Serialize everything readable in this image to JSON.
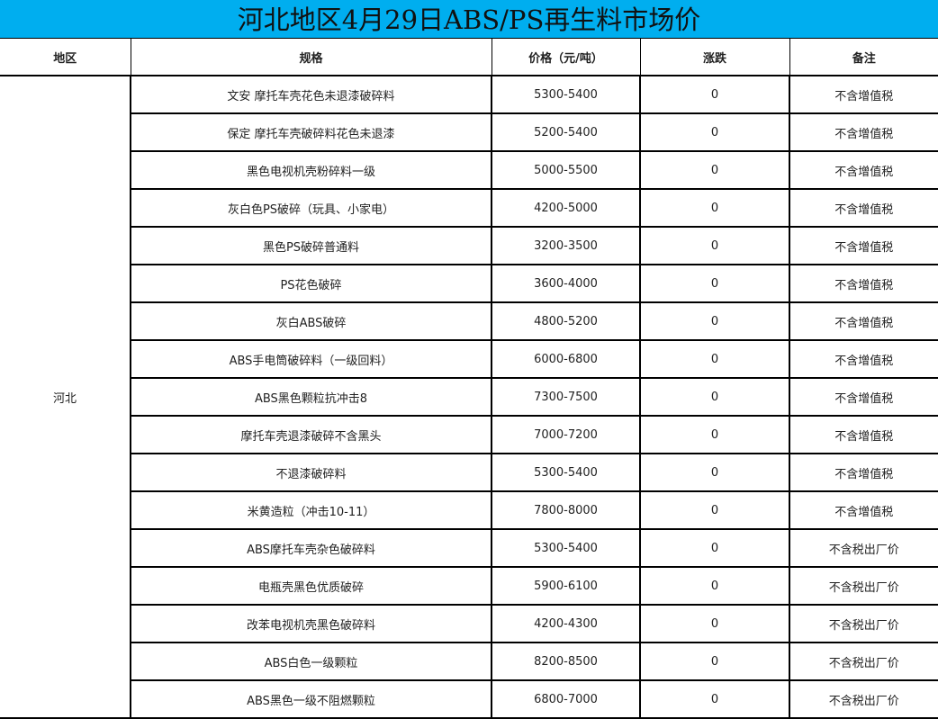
{
  "title": "河北地区4月29日ABS/PS再生料市场价",
  "accent_color": "#00AEEF",
  "headers": [
    "地区",
    "规格",
    "价格（元/吨）",
    "涨跌",
    "备注"
  ],
  "region": "河北",
  "rows": [
    {
      "spec": "文安 摩托车壳花色未退漆破碎料",
      "price": "5300-5400",
      "change": "0",
      "note": "不含增值税"
    },
    {
      "spec": "保定 摩托车壳破碎料花色未退漆",
      "price": "5200-5400",
      "change": "0",
      "note": "不含增值税"
    },
    {
      "spec": "黑色电视机壳粉碎料一级",
      "price": "5000-5500",
      "change": "0",
      "note": "不含增值税"
    },
    {
      "spec": "灰白色PS破碎（玩具、小家电）",
      "price": "4200-5000",
      "change": "0",
      "note": "不含增值税"
    },
    {
      "spec": "黑色PS破碎普通料",
      "price": "3200-3500",
      "change": "0",
      "note": "不含增值税"
    },
    {
      "spec": "PS花色破碎",
      "price": "3600-4000",
      "change": "0",
      "note": "不含增值税"
    },
    {
      "spec": "灰白ABS破碎",
      "price": "4800-5200",
      "change": "0",
      "note": "不含增值税"
    },
    {
      "spec": "ABS手电筒破碎料（一级回料）",
      "price": "6000-6800",
      "change": "0",
      "note": "不含增值税"
    },
    {
      "spec": "ABS黑色颗粒抗冲击8",
      "price": "7300-7500",
      "change": "0",
      "note": "不含增值税"
    },
    {
      "spec": "摩托车壳退漆破碎不含黑头",
      "price": "7000-7200",
      "change": "0",
      "note": "不含增值税"
    },
    {
      "spec": "不退漆破碎料",
      "price": "5300-5400",
      "change": "0",
      "note": "不含增值税"
    },
    {
      "spec": "米黄造粒（冲击10-11）",
      "price": "7800-8000",
      "change": "0",
      "note": "不含增值税"
    },
    {
      "spec": "ABS摩托车壳杂色破碎料",
      "price": "5300-5400",
      "change": "0",
      "note": "不含税出厂价"
    },
    {
      "spec": "电瓶壳黑色优质破碎",
      "price": "5900-6100",
      "change": "0",
      "note": "不含税出厂价"
    },
    {
      "spec": "改苯电视机壳黑色破碎料",
      "price": "4200-4300",
      "change": "0",
      "note": "不含税出厂价"
    },
    {
      "spec": "ABS白色一级颗粒",
      "price": "8200-8500",
      "change": "0",
      "note": "不含税出厂价"
    },
    {
      "spec": "ABS黑色一级不阻燃颗粒",
      "price": "6800-7000",
      "change": "0",
      "note": "不含税出厂价"
    }
  ]
}
